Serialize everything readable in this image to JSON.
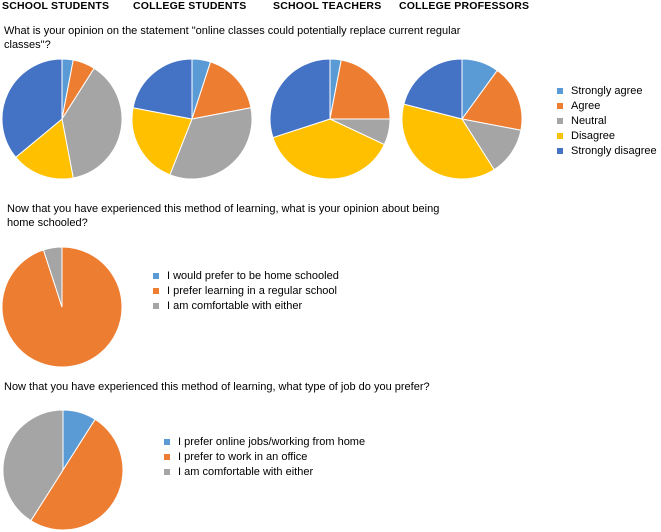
{
  "headers": [
    "SCHOOL STUDENTS",
    "COLLEGE STUDENTS",
    "SCHOOL TEACHERS",
    "COLLEGE PROFESSORS"
  ],
  "questions": [
    "What is your opinion on the statement \"online classes could potentially replace current regular classes\"?",
    "Now that you have experienced this method of learning, what is your opinion about being home schooled?",
    "Now that you have experienced this method of learning, what type of job do you prefer?"
  ],
  "colors": [
    "#5b9bd5",
    "#ed7d31",
    "#a5a5a5",
    "#ffc000",
    "#4472c4"
  ],
  "chart_data": [
    {
      "type": "pie",
      "title": "SCHOOL STUDENTS",
      "categories": [
        "Strongly agree",
        "Agree",
        "Neutral",
        "Disagree",
        "Strongly disagree"
      ],
      "values": [
        3,
        6,
        38,
        17,
        36
      ]
    },
    {
      "type": "pie",
      "title": "COLLEGE STUDENTS",
      "categories": [
        "Strongly agree",
        "Agree",
        "Neutral",
        "Disagree",
        "Strongly disagree"
      ],
      "values": [
        5,
        17,
        34,
        22,
        22
      ]
    },
    {
      "type": "pie",
      "title": "SCHOOL TEACHERS",
      "categories": [
        "Strongly agree",
        "Agree",
        "Neutral",
        "Disagree",
        "Strongly disagree"
      ],
      "values": [
        3,
        22,
        7,
        38,
        30
      ]
    },
    {
      "type": "pie",
      "title": "COLLEGE PROFESSORS",
      "categories": [
        "Strongly agree",
        "Agree",
        "Neutral",
        "Disagree",
        "Strongly disagree"
      ],
      "values": [
        10,
        18,
        13,
        38,
        21
      ]
    },
    {
      "type": "pie",
      "categories": [
        "I would prefer to be home schooled",
        "I prefer learning in a regular school",
        "I am comfortable with either"
      ],
      "values": [
        0,
        95,
        5
      ]
    },
    {
      "type": "pie",
      "categories": [
        "I prefer online jobs/working from home",
        "I prefer to work in an office",
        "I am comfortable with either"
      ],
      "values": [
        9,
        50,
        41
      ]
    }
  ]
}
